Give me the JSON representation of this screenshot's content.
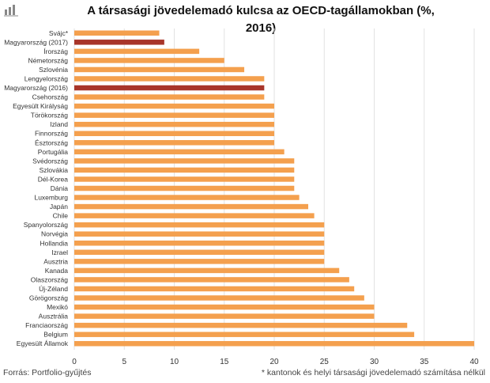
{
  "header": {
    "title_line1": "A társasági jövedelemadó kulcsa az OECD-tagállamokban  (%,",
    "title_line2": "2016)"
  },
  "footer": {
    "source": "Forrás: Portfolio-gyűjtés",
    "note": "* kantonok és helyi társasági jövedelemadó számítása nélkül"
  },
  "colors": {
    "default_bar": "#f4a04e",
    "highlight_bar": "#a8352a",
    "grid": "#e2e2e2"
  },
  "chart_data": {
    "type": "bar",
    "orientation": "horizontal",
    "title": "A társasági jövedelemadó kulcsa az OECD-tagállamokban  (%, 2016)",
    "xlim": [
      0,
      40
    ],
    "x_ticks": [
      0,
      5,
      10,
      15,
      20,
      25,
      30,
      35,
      40
    ],
    "grid": true,
    "categories": [
      "Svájc*",
      "Magyarország (2017)",
      "Írország",
      "Németország",
      "Szlovénia",
      "Lengyelország",
      "Magyarország (2016)",
      "Csehország",
      "Egyesült Királyság",
      "Törökország",
      "Izland",
      "Finnország",
      "Észtország",
      "Portugália",
      "Svédország",
      "Szlovákia",
      "Dél-Korea",
      "Dánia",
      "Luxemburg",
      "Japán",
      "Chile",
      "Spanyolország",
      "Norvégia",
      "Hollandia",
      "Izrael",
      "Ausztria",
      "Kanada",
      "Olaszország",
      "Új-Zéland",
      "Görögország",
      "Mexikó",
      "Ausztrália",
      "Franciaország",
      "Belgium",
      "Egyesült Államok"
    ],
    "values": [
      8.5,
      9,
      12.5,
      15,
      17,
      19,
      19,
      19,
      20,
      20,
      20,
      20,
      20,
      21,
      22,
      22,
      22,
      22,
      22.5,
      23.4,
      24,
      25,
      25,
      25,
      25,
      25,
      26.5,
      27.5,
      28,
      29,
      30,
      30,
      33.3,
      34,
      40
    ],
    "highlighted": [
      "Magyarország (2017)",
      "Magyarország (2016)"
    ]
  }
}
